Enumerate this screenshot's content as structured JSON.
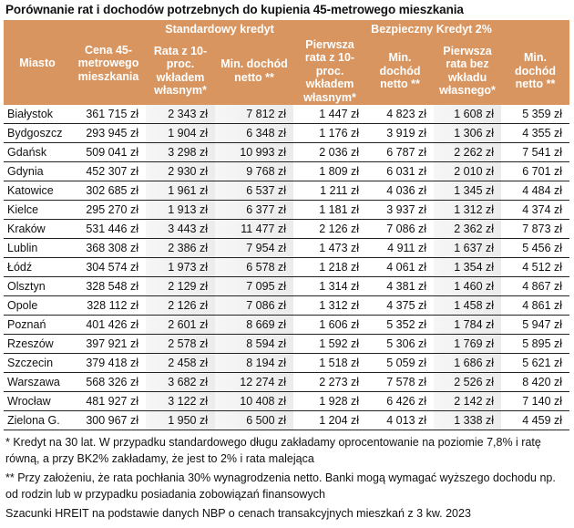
{
  "title": "Porównanie rat i dochodów potrzebnych do kupienia 45-metrowego mieszkania",
  "header": {
    "group_standard": "Standardowy kredyt",
    "group_bk2": "Bezpieczny Kredyt 2%",
    "columns": [
      "Miasto",
      "Cena 45-metrowego mieszkania",
      "Rata z 10-proc. wkładem własnym*",
      "Min. dochód netto **",
      "Pierwsza rata z 10-proc. wkładem własnym*",
      "Min. dochód netto **",
      "Pierwsza rata bez wkładu własnego*",
      "Min. dochód netto **"
    ]
  },
  "colors": {
    "header_bg": "#d8955f",
    "header_text": "#ffffff",
    "shaded_column": "#efefef"
  },
  "rows": [
    [
      "Białystok",
      "361 715 zł",
      "2 343 zł",
      "7 812 zł",
      "1 447 zł",
      "4 823 zł",
      "1 608 zł",
      "5 359 zł"
    ],
    [
      "Bydgoszcz",
      "293 945 zł",
      "1 904 zł",
      "6 348 zł",
      "1 176 zł",
      "3 919 zł",
      "1 306 zł",
      "4 355 zł"
    ],
    [
      "Gdańsk",
      "509 041 zł",
      "3 298 zł",
      "10 993 zł",
      "2 036 zł",
      "6 787 zł",
      "2 262 zł",
      "7 541 zł"
    ],
    [
      "Gdynia",
      "452 307 zł",
      "2 930 zł",
      "9 768 zł",
      "1 809 zł",
      "6 031 zł",
      "2 010 zł",
      "6 701 zł"
    ],
    [
      "Katowice",
      "302 685 zł",
      "1 961 zł",
      "6 537 zł",
      "1 211 zł",
      "4 036 zł",
      "1 345 zł",
      "4 484 zł"
    ],
    [
      "Kielce",
      "295 270 zł",
      "1 913 zł",
      "6 377 zł",
      "1 181 zł",
      "3 937 zł",
      "1 312 zł",
      "4 374 zł"
    ],
    [
      "Kraków",
      "531 446 zł",
      "3 443 zł",
      "11 477 zł",
      "2 126 zł",
      "7 086 zł",
      "2 362 zł",
      "7 873 zł"
    ],
    [
      "Lublin",
      "368 308 zł",
      "2 386 zł",
      "7 954 zł",
      "1 473 zł",
      "4 911 zł",
      "1 637 zł",
      "5 456 zł"
    ],
    [
      "Łódź",
      "304 574 zł",
      "1 973 zł",
      "6 578 zł",
      "1 218 zł",
      "4 061 zł",
      "1 354 zł",
      "4 512 zł"
    ],
    [
      "Olsztyn",
      "328 548 zł",
      "2 129 zł",
      "7 095 zł",
      "1 314 zł",
      "4 381 zł",
      "1 460 zł",
      "4 867 zł"
    ],
    [
      "Opole",
      "328 112 zł",
      "2 126 zł",
      "7 086 zł",
      "1 312 zł",
      "4 375 zł",
      "1 458 zł",
      "4 861 zł"
    ],
    [
      "Poznań",
      "401 426 zł",
      "2 601 zł",
      "8 669 zł",
      "1 606 zł",
      "5 352 zł",
      "1 784 zł",
      "5 947 zł"
    ],
    [
      "Rzeszów",
      "397 921 zł",
      "2 578 zł",
      "8 594 zł",
      "1 592 zł",
      "5 306 zł",
      "1 769 zł",
      "5 895 zł"
    ],
    [
      "Szczecin",
      "379 418 zł",
      "2 458 zł",
      "8 194 zł",
      "1 518 zł",
      "5 059 zł",
      "1 686 zł",
      "5 621 zł"
    ],
    [
      "Warszawa",
      "568 326 zł",
      "3 682 zł",
      "12 274 zł",
      "2 273 zł",
      "7 578 zł",
      "2 526 zł",
      "8 420 zł"
    ],
    [
      "Wrocław",
      "481 927 zł",
      "3 122 zł",
      "10 408 zł",
      "1 928 zł",
      "6 426 zł",
      "2 142 zł",
      "7 140 zł"
    ],
    [
      "Zielona G.",
      "300 967 zł",
      "1 950 zł",
      "6 500 zł",
      "1 204 zł",
      "4 013 zł",
      "1 338 zł",
      "4 459 zł"
    ]
  ],
  "notes": [
    "* Kredyt na 30 lat. W przypadku standardowego długu zakładamy oprocentowanie na poziomie 7,8% i ratę równą, a przy BK2% zakładamy, że jest to 2% i rata malejąca",
    "** Przy założeniu, że rata pochłania 30% wynagrodzenia netto. Banki mogą wymagać wyższego dochodu np. od rodzin lub w przypadku posiadania zobowiązań finansowych",
    "Szacunki HREIT na podstawie danych NBP o cenach transakcyjnych mieszkań z 3 kw. 2023"
  ]
}
